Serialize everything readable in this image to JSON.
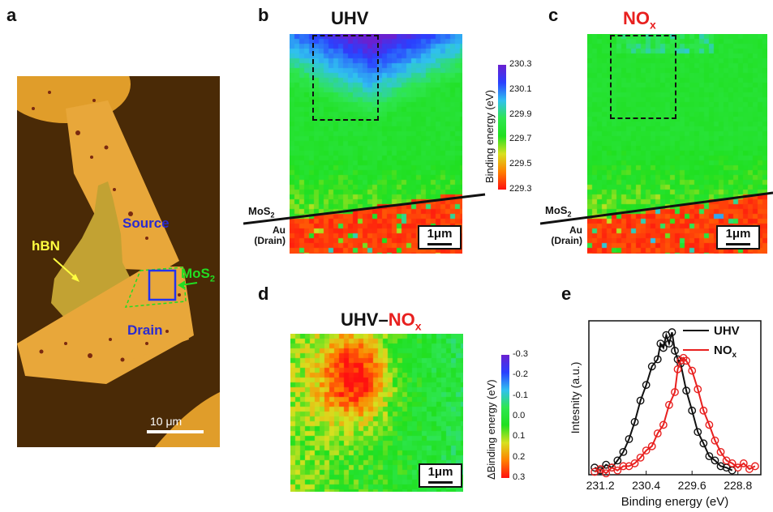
{
  "panels": {
    "a": {
      "label": "a",
      "hbn": "hBN",
      "source": "Source",
      "mos2": "MoS",
      "mos2_sub": "2",
      "drain": "Drain",
      "scale": "10 μm"
    },
    "b": {
      "label": "b",
      "title": "UHV",
      "mos2": "MoS",
      "mos2_sub": "2",
      "au": "Au",
      "drain": "(Drain)",
      "scale": "1μm",
      "colorbar": {
        "title": "Binding energy (eV)",
        "ticks": [
          "230.3",
          "230.1",
          "229.9",
          "229.7",
          "229.5",
          "229.3"
        ]
      }
    },
    "c": {
      "label": "c",
      "title": "NO",
      "title_sub": "x",
      "mos2": "MoS",
      "mos2_sub": "2",
      "au": "Au",
      "drain": "(Drain)",
      "scale": "1μm"
    },
    "d": {
      "label": "d",
      "title_a": "UHV",
      "title_dash": "–",
      "title_b": "NO",
      "title_sub": "x",
      "scale": "1μm",
      "colorbar": {
        "title": "ΔBinding energy (eV)",
        "ticks": [
          "-0.3",
          "-0.2",
          "-0.1",
          "0.0",
          "0.1",
          "0.2",
          "0.3"
        ]
      }
    },
    "e": {
      "label": "e"
    }
  },
  "colors": {
    "uhv": "#111111",
    "nox": "#e8201f",
    "source_text": "#2a2ad0",
    "hbn_text": "#ffff40",
    "mos2_text": "#22dd22"
  },
  "chart_data": {
    "type": "scatter",
    "xlabel": "Binding energy (eV)",
    "ylabel": "Intesnity (a.u.)",
    "x_reversed": true,
    "xlim": [
      231.4,
      228.4
    ],
    "xticks": [
      "231.2",
      "230.4",
      "229.6",
      "228.8"
    ],
    "ylim": [
      0,
      1.08
    ],
    "legend": "top-right",
    "series": [
      {
        "name": "UHV",
        "peak": 230.0,
        "width": 0.25,
        "x": [
          231.3,
          231.2,
          231.1,
          231.0,
          230.9,
          230.8,
          230.7,
          230.6,
          230.5,
          230.4,
          230.3,
          230.2,
          230.15,
          230.1,
          230.05,
          230.0,
          229.95,
          229.9,
          229.85,
          229.8,
          229.7,
          229.6,
          229.5,
          229.4,
          229.3,
          229.2,
          229.1,
          229.0,
          228.9
        ],
        "y": [
          0.05,
          0.03,
          0.07,
          0.05,
          0.1,
          0.16,
          0.25,
          0.37,
          0.52,
          0.63,
          0.76,
          0.81,
          0.92,
          0.89,
          0.98,
          0.92,
          1.0,
          0.87,
          0.81,
          0.78,
          0.59,
          0.45,
          0.3,
          0.22,
          0.13,
          0.1,
          0.06,
          0.05,
          0.03
        ]
      },
      {
        "name": "NO",
        "name_sub": "x",
        "x": [
          231.3,
          231.2,
          231.1,
          231.0,
          230.9,
          230.8,
          230.7,
          230.6,
          230.5,
          230.4,
          230.3,
          230.2,
          230.1,
          230.0,
          229.9,
          229.85,
          229.8,
          229.75,
          229.7,
          229.6,
          229.5,
          229.4,
          229.3,
          229.2,
          229.1,
          229.0,
          228.9,
          228.8,
          228.7,
          228.6,
          228.5
        ],
        "y": [
          0.02,
          0.04,
          0.01,
          0.05,
          0.03,
          0.06,
          0.06,
          0.08,
          0.12,
          0.17,
          0.2,
          0.29,
          0.35,
          0.49,
          0.58,
          0.74,
          0.8,
          0.82,
          0.8,
          0.73,
          0.6,
          0.45,
          0.35,
          0.24,
          0.16,
          0.1,
          0.08,
          0.05,
          0.08,
          0.04,
          0.06
        ]
      }
    ]
  }
}
